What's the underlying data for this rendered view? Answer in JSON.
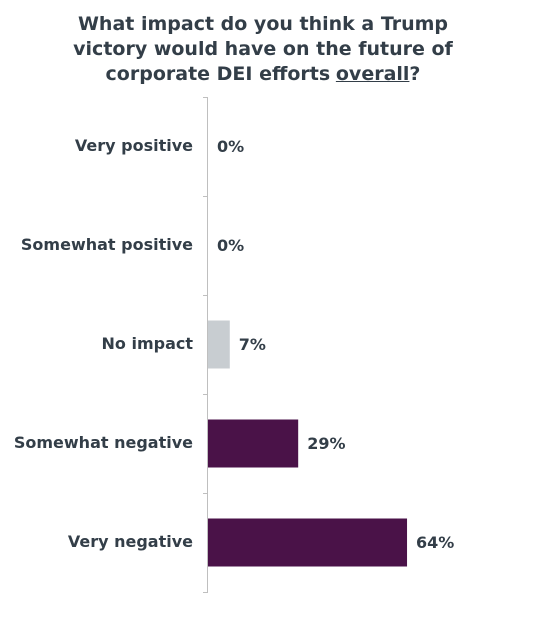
{
  "chart_data": {
    "type": "bar",
    "orientation": "horizontal",
    "title": [
      "What impact do you think a Trump victory would have on the future of corporate DEI efforts",
      "overall",
      "?"
    ],
    "categories": [
      "Very positive",
      "Somewhat positive",
      "No impact",
      "Somewhat negative",
      "Very negative"
    ],
    "values": [
      0,
      0,
      7,
      29,
      64
    ],
    "value_labels": [
      "0%",
      "0%",
      "7%",
      "29%",
      "64%"
    ],
    "colors": [
      "#c8cdd1",
      "#c8cdd1",
      "#c8cdd1",
      "#4a1248",
      "#4a1248"
    ]
  }
}
